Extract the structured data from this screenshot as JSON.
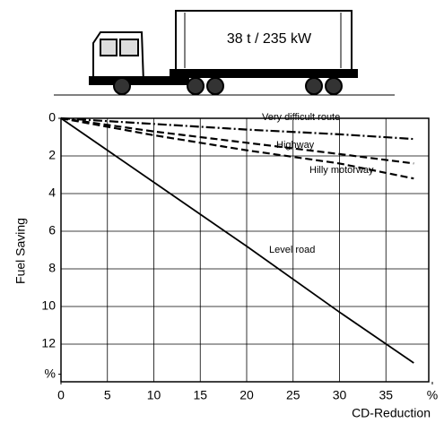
{
  "chart_data": {
    "type": "line",
    "annotation": "38 t / 235 kW",
    "y_label": "Fuel Saving",
    "x_label": "CD-Reduction",
    "x": [
      0,
      10,
      20,
      30,
      38
    ],
    "series": [
      {
        "name": "Very difficult route",
        "color": "#000000",
        "style": "dashdot",
        "values": [
          0,
          0.3,
          0.6,
          0.85,
          1.1
        ]
      },
      {
        "name": "Highway",
        "color": "#000000",
        "style": "dashed",
        "values": [
          0,
          0.7,
          1.3,
          1.9,
          2.4
        ]
      },
      {
        "name": "Hilly motorway",
        "color": "#000000",
        "style": "dashed",
        "values": [
          0,
          0.9,
          1.7,
          2.4,
          3.2
        ]
      },
      {
        "name": "Level road",
        "color": "#000000",
        "style": "solid",
        "values": [
          0,
          3.4,
          6.8,
          10.3,
          13
        ]
      }
    ],
    "xlim": [
      0,
      40
    ],
    "xticks": [
      0,
      5,
      10,
      15,
      20,
      25,
      30,
      35,
      {
        "value": 40,
        "label": "%"
      }
    ],
    "ylim": [
      0,
      14
    ],
    "yticks": [
      0,
      2,
      4,
      6,
      8,
      10,
      12,
      {
        "value": 13.6,
        "label": "%"
      }
    ],
    "grid": true
  }
}
